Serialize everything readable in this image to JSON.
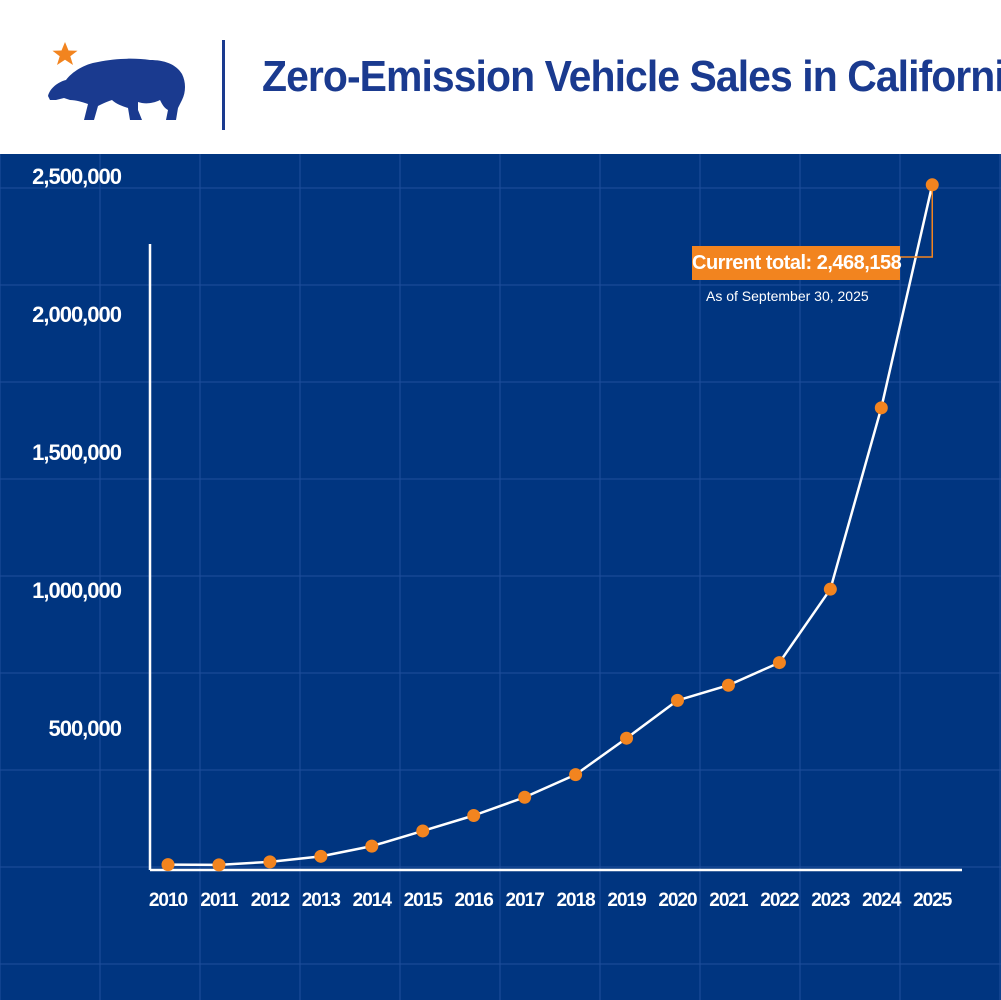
{
  "header": {
    "title": "Zero-Emission Vehicle Sales in California",
    "logo_icon": "california-bear-star-icon"
  },
  "colors": {
    "brand_blue": "#1a3a8f",
    "chart_background": "#003580",
    "grid": "#1f4f9c",
    "line": "#ffffff",
    "marker": "#f2841f",
    "callout": "#f2841f"
  },
  "chart_data": {
    "type": "line",
    "title": "Zero-Emission Vehicle Sales in California",
    "xlabel": "",
    "ylabel": "",
    "categories": [
      "2010",
      "2011",
      "2012",
      "2013",
      "2014",
      "2015",
      "2016",
      "2017",
      "2018",
      "2019",
      "2020",
      "2021",
      "2022",
      "2023",
      "2024",
      "2025"
    ],
    "series": [
      {
        "values": [
          5000,
          4000,
          15000,
          35000,
          72000,
          127000,
          183000,
          249000,
          331000,
          463000,
          600000,
          655000,
          737000,
          1003000,
          1660000,
          2468158
        ]
      }
    ],
    "yticks": [
      500000,
      1000000,
      1500000,
      2000000,
      2500000
    ],
    "ytick_labels": [
      "500,000",
      "1,000,000",
      "1,500,000",
      "2,000,000",
      "2,500,000"
    ],
    "ylim": [
      0,
      2700000
    ],
    "grid": true,
    "annotation": {
      "label": "Current total: 2,468,158",
      "sublabel": "As of September 30, 2025",
      "target_category": "2025"
    }
  }
}
